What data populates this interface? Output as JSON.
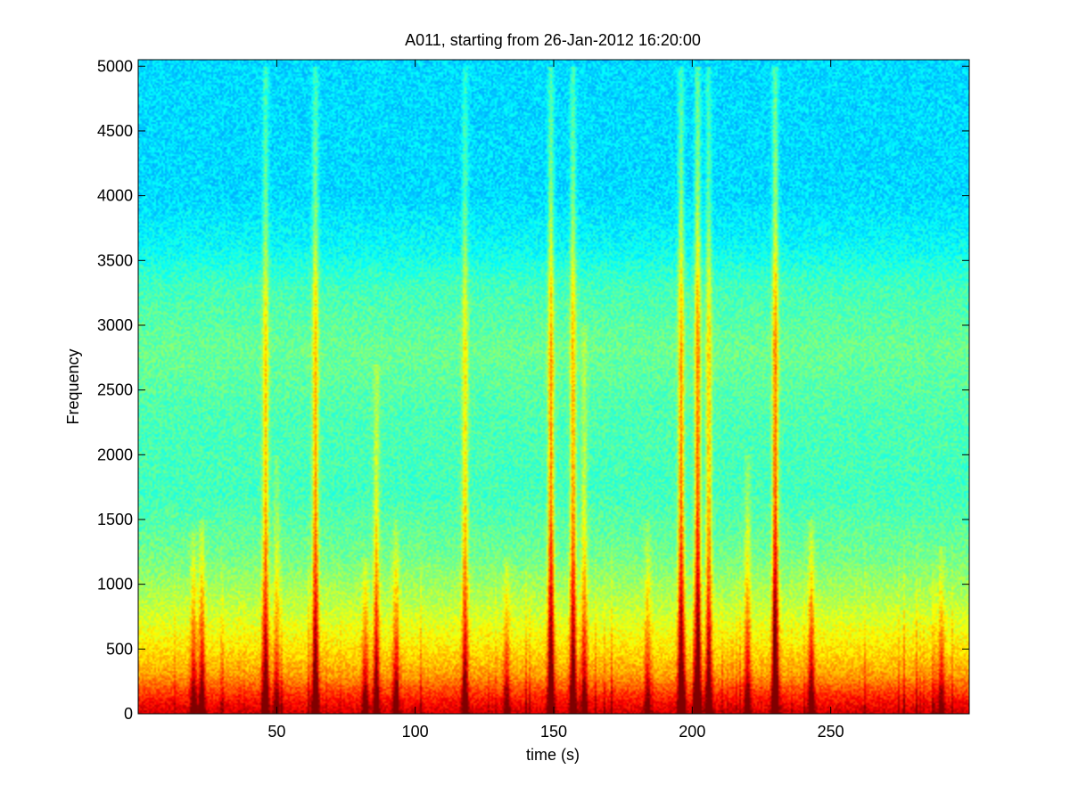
{
  "chart_data": {
    "type": "heatmap",
    "title": "A011, starting from 26-Jan-2012 16:20:00",
    "xlabel": "time (s)",
    "ylabel": "Frequency",
    "xlim": [
      0,
      300
    ],
    "ylim": [
      0,
      5050
    ],
    "xticks": [
      50,
      100,
      150,
      200,
      250
    ],
    "yticks": [
      0,
      500,
      1000,
      1500,
      2000,
      2500,
      3000,
      3500,
      4000,
      4500,
      5000
    ],
    "grid": false,
    "colormap": "jet",
    "colors": {
      "high": "#e82418",
      "mid_high": "#ffff00",
      "mid": "#7dff80",
      "low": "#16d3e6"
    },
    "band_profile": {
      "frequency": [
        0,
        100,
        300,
        500,
        800,
        1200,
        1700,
        2300,
        2800,
        3300,
        3600,
        4000,
        5050
      ],
      "level": [
        0.92,
        0.86,
        0.72,
        0.65,
        0.57,
        0.49,
        0.44,
        0.45,
        0.48,
        0.44,
        0.38,
        0.34,
        0.34
      ]
    },
    "events": [
      {
        "t": 20,
        "fmax": 1400,
        "strength": 0.5
      },
      {
        "t": 23,
        "fmax": 1500,
        "strength": 0.6
      },
      {
        "t": 46,
        "fmax": 5000,
        "strength": 0.7
      },
      {
        "t": 50,
        "fmax": 2000,
        "strength": 0.4
      },
      {
        "t": 64,
        "fmax": 5000,
        "strength": 0.8
      },
      {
        "t": 82,
        "fmax": 1200,
        "strength": 0.5
      },
      {
        "t": 86,
        "fmax": 2700,
        "strength": 0.6
      },
      {
        "t": 93,
        "fmax": 1500,
        "strength": 0.5
      },
      {
        "t": 118,
        "fmax": 5000,
        "strength": 0.6
      },
      {
        "t": 133,
        "fmax": 1200,
        "strength": 0.4
      },
      {
        "t": 149,
        "fmax": 5000,
        "strength": 0.9
      },
      {
        "t": 157,
        "fmax": 5000,
        "strength": 0.8
      },
      {
        "t": 161,
        "fmax": 3000,
        "strength": 0.5
      },
      {
        "t": 184,
        "fmax": 1500,
        "strength": 0.4
      },
      {
        "t": 196,
        "fmax": 5000,
        "strength": 0.9
      },
      {
        "t": 202,
        "fmax": 5000,
        "strength": 1.0
      },
      {
        "t": 206,
        "fmax": 5000,
        "strength": 0.7
      },
      {
        "t": 220,
        "fmax": 2000,
        "strength": 0.5
      },
      {
        "t": 230,
        "fmax": 5000,
        "strength": 1.0
      },
      {
        "t": 243,
        "fmax": 1500,
        "strength": 0.6
      },
      {
        "t": 290,
        "fmax": 1300,
        "strength": 0.4
      }
    ]
  }
}
